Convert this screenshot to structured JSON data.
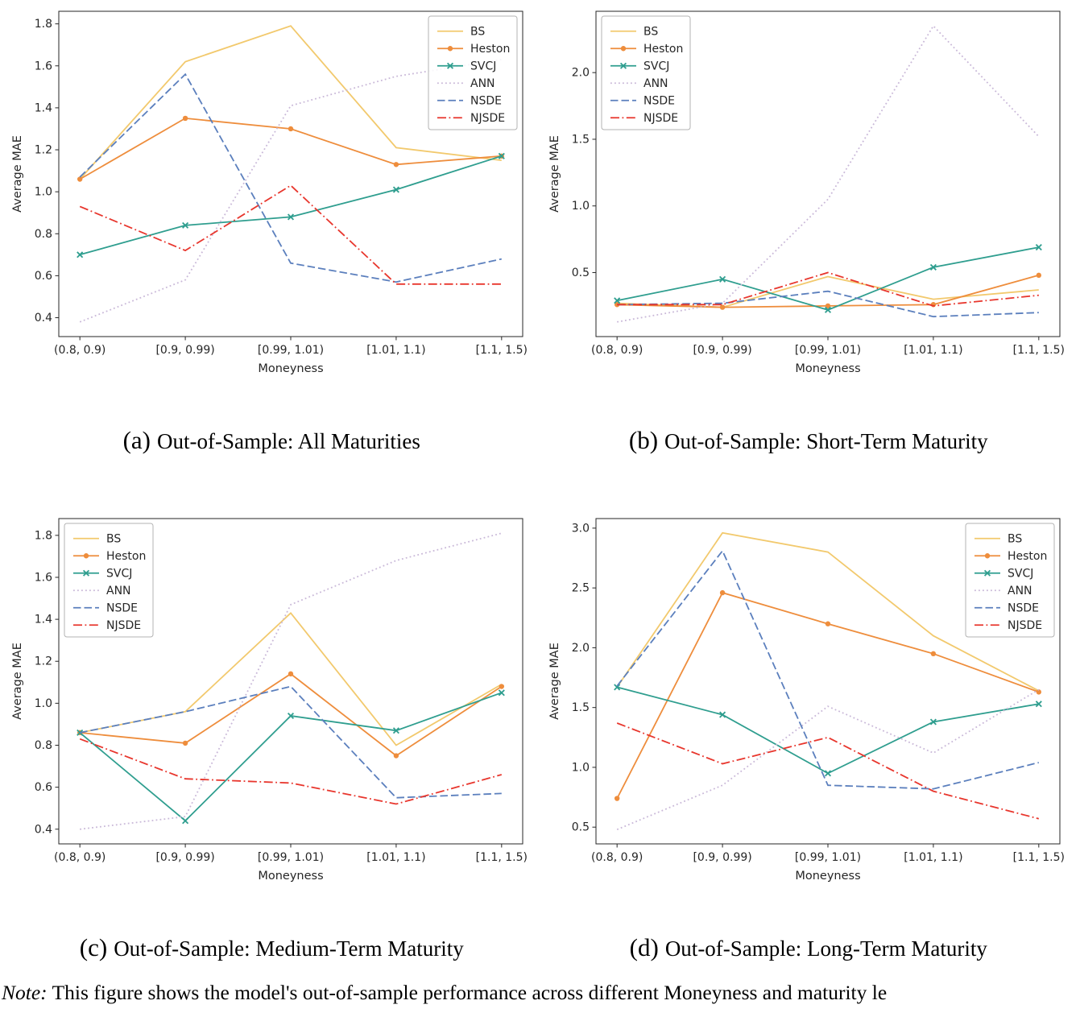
{
  "note": {
    "prefix": "Note:",
    "text": "This figure shows the model's out-of-sample performance across different Moneyness and maturity le"
  },
  "style": {
    "axis_color": "#262626",
    "legend_border": "#b3b3b3",
    "background": "#ffffff"
  },
  "chart_data": [
    {
      "id": "a",
      "type": "line",
      "caption_label": "(a)",
      "caption": "Out-of-Sample: All Maturities",
      "xlabel": "Moneyness",
      "ylabel": "Average MAE",
      "categories": [
        "(0.8, 0.9)",
        "[0.9, 0.99)",
        "[0.99, 1.01)",
        "[1.01, 1.1)",
        "[1.1, 1.5)"
      ],
      "ylim": [
        0.31,
        1.86
      ],
      "yticks": [
        0.4,
        0.6,
        0.8,
        1.0,
        1.2,
        1.4,
        1.6,
        1.8
      ],
      "grid": false,
      "legend_pos": "top-right",
      "series": [
        {
          "name": "BS",
          "color": "#f2c96d",
          "style": "solid",
          "marker": "none",
          "values": [
            1.06,
            1.62,
            1.79,
            1.21,
            1.15
          ]
        },
        {
          "name": "Heston",
          "color": "#ee8d3c",
          "style": "solid",
          "marker": "circle",
          "values": [
            1.06,
            1.35,
            1.3,
            1.13,
            1.17
          ]
        },
        {
          "name": "SVCJ",
          "color": "#2f9e8f",
          "style": "solid",
          "marker": "x",
          "values": [
            0.7,
            0.84,
            0.88,
            1.01,
            1.17
          ]
        },
        {
          "name": "ANN",
          "color": "#c9b8d8",
          "style": "dotted",
          "marker": "none",
          "values": [
            0.38,
            0.58,
            1.41,
            1.55,
            1.63
          ]
        },
        {
          "name": "NSDE",
          "color": "#5b7fbd",
          "style": "dashed",
          "marker": "none",
          "values": [
            1.07,
            1.56,
            0.66,
            0.57,
            0.68
          ]
        },
        {
          "name": "NJSDE",
          "color": "#e8362d",
          "style": "dashdot",
          "marker": "none",
          "values": [
            0.93,
            0.72,
            1.03,
            0.56,
            0.56
          ]
        }
      ]
    },
    {
      "id": "b",
      "type": "line",
      "caption_label": "(b)",
      "caption": "Out-of-Sample: Short-Term Maturity",
      "xlabel": "Moneyness",
      "ylabel": "Average MAE",
      "categories": [
        "(0.8, 0.9)",
        "[0.9, 0.99)",
        "[0.99, 1.01)",
        "[1.01, 1.1)",
        "[1.1, 1.5)"
      ],
      "ylim": [
        0.02,
        2.46
      ],
      "yticks": [
        0.5,
        1.0,
        1.5,
        2.0
      ],
      "grid": false,
      "legend_pos": "top-left",
      "series": [
        {
          "name": "BS",
          "color": "#f2c96d",
          "style": "solid",
          "marker": "none",
          "values": [
            0.27,
            0.24,
            0.47,
            0.3,
            0.37
          ]
        },
        {
          "name": "Heston",
          "color": "#ee8d3c",
          "style": "solid",
          "marker": "circle",
          "values": [
            0.26,
            0.24,
            0.25,
            0.26,
            0.48
          ]
        },
        {
          "name": "SVCJ",
          "color": "#2f9e8f",
          "style": "solid",
          "marker": "x",
          "values": [
            0.29,
            0.45,
            0.22,
            0.54,
            0.69
          ]
        },
        {
          "name": "ANN",
          "color": "#c9b8d8",
          "style": "dotted",
          "marker": "none",
          "values": [
            0.13,
            0.27,
            1.05,
            2.35,
            1.52
          ]
        },
        {
          "name": "NSDE",
          "color": "#5b7fbd",
          "style": "dashed",
          "marker": "none",
          "values": [
            0.26,
            0.27,
            0.36,
            0.17,
            0.2
          ]
        },
        {
          "name": "NJSDE",
          "color": "#e8362d",
          "style": "dashdot",
          "marker": "none",
          "values": [
            0.26,
            0.26,
            0.5,
            0.25,
            0.33
          ]
        }
      ]
    },
    {
      "id": "c",
      "type": "line",
      "caption_label": "(c)",
      "caption": "Out-of-Sample: Medium-Term Maturity",
      "xlabel": "Moneyness",
      "ylabel": "Average MAE",
      "categories": [
        "(0.8, 0.9)",
        "[0.9, 0.99)",
        "[0.99, 1.01)",
        "[1.01, 1.1)",
        "[1.1, 1.5)"
      ],
      "ylim": [
        0.33,
        1.88
      ],
      "yticks": [
        0.4,
        0.6,
        0.8,
        1.0,
        1.2,
        1.4,
        1.6,
        1.8
      ],
      "grid": false,
      "legend_pos": "top-left",
      "series": [
        {
          "name": "BS",
          "color": "#f2c96d",
          "style": "solid",
          "marker": "none",
          "values": [
            0.86,
            0.96,
            1.43,
            0.8,
            1.09
          ]
        },
        {
          "name": "Heston",
          "color": "#ee8d3c",
          "style": "solid",
          "marker": "circle",
          "values": [
            0.86,
            0.81,
            1.14,
            0.75,
            1.08
          ]
        },
        {
          "name": "SVCJ",
          "color": "#2f9e8f",
          "style": "solid",
          "marker": "x",
          "values": [
            0.86,
            0.44,
            0.94,
            0.87,
            1.05
          ]
        },
        {
          "name": "ANN",
          "color": "#c9b8d8",
          "style": "dotted",
          "marker": "none",
          "values": [
            0.4,
            0.46,
            1.47,
            1.68,
            1.81
          ]
        },
        {
          "name": "NSDE",
          "color": "#5b7fbd",
          "style": "dashed",
          "marker": "none",
          "values": [
            0.86,
            0.96,
            1.08,
            0.55,
            0.57
          ]
        },
        {
          "name": "NJSDE",
          "color": "#e8362d",
          "style": "dashdot",
          "marker": "none",
          "values": [
            0.83,
            0.64,
            0.62,
            0.52,
            0.66
          ]
        }
      ]
    },
    {
      "id": "d",
      "type": "line",
      "caption_label": "(d)",
      "caption": "Out-of-Sample: Long-Term Maturity",
      "xlabel": "Moneyness",
      "ylabel": "Average MAE",
      "categories": [
        "(0.8, 0.9)",
        "[0.9, 0.99)",
        "[0.99, 1.01)",
        "[1.01, 1.1)",
        "[1.1, 1.5)"
      ],
      "ylim": [
        0.36,
        3.08
      ],
      "yticks": [
        0.5,
        1.0,
        1.5,
        2.0,
        2.5,
        3.0
      ],
      "grid": false,
      "legend_pos": "top-right",
      "series": [
        {
          "name": "BS",
          "color": "#f2c96d",
          "style": "solid",
          "marker": "none",
          "values": [
            1.67,
            2.96,
            2.8,
            2.1,
            1.64
          ]
        },
        {
          "name": "Heston",
          "color": "#ee8d3c",
          "style": "solid",
          "marker": "circle",
          "values": [
            0.74,
            2.46,
            2.2,
            1.95,
            1.63
          ]
        },
        {
          "name": "SVCJ",
          "color": "#2f9e8f",
          "style": "solid",
          "marker": "x",
          "values": [
            1.67,
            1.44,
            0.95,
            1.38,
            1.53
          ]
        },
        {
          "name": "ANN",
          "color": "#c9b8d8",
          "style": "dotted",
          "marker": "none",
          "values": [
            0.48,
            0.85,
            1.51,
            1.12,
            1.65
          ]
        },
        {
          "name": "NSDE",
          "color": "#5b7fbd",
          "style": "dashed",
          "marker": "none",
          "values": [
            1.68,
            2.81,
            0.85,
            0.82,
            1.04
          ]
        },
        {
          "name": "NJSDE",
          "color": "#e8362d",
          "style": "dashdot",
          "marker": "none",
          "values": [
            1.37,
            1.03,
            1.25,
            0.8,
            0.57
          ]
        }
      ]
    }
  ]
}
